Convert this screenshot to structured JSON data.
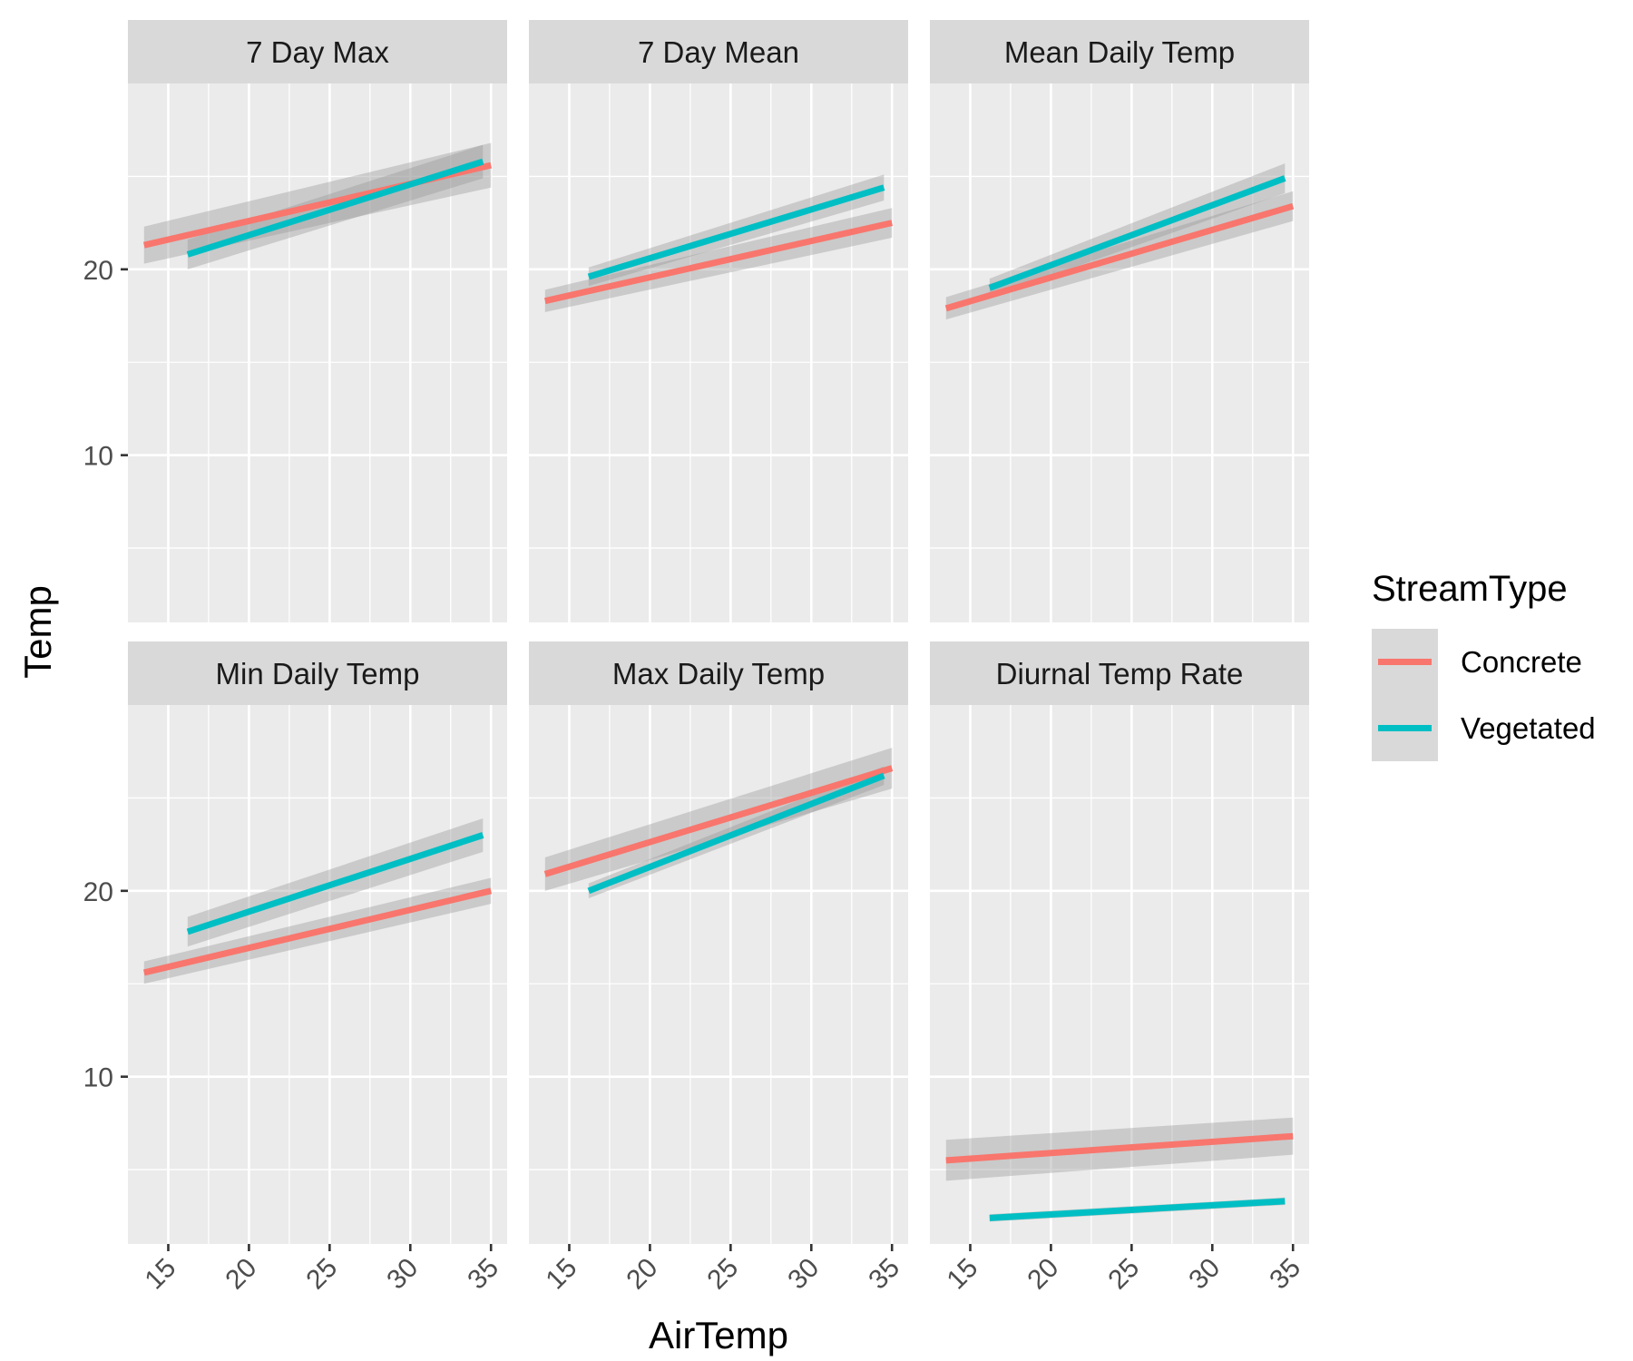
{
  "chart_data": {
    "type": "line",
    "xlabel": "AirTemp",
    "ylabel": "Temp",
    "xlim": [
      12.5,
      36
    ],
    "ylim": [
      1,
      30
    ],
    "x_ticks": [
      15,
      20,
      25,
      30,
      35
    ],
    "y_ticks": [
      10,
      20
    ],
    "grid": true,
    "legend": {
      "title": "StreamType",
      "position": "right",
      "entries": [
        {
          "name": "Concrete",
          "color": "#F8766D"
        },
        {
          "name": "Vegetated",
          "color": "#00BFC4"
        }
      ]
    },
    "colors": {
      "Concrete": "#F8766D",
      "Vegetated": "#00BFC4",
      "panel_background": "#EBEBEB",
      "strip_background": "#D9D9D9",
      "ribbon": "#999999"
    },
    "panels": [
      {
        "title": "7 Day Max",
        "series": [
          {
            "name": "Concrete",
            "x": [
              13.5,
              35
            ],
            "y": [
              21.3,
              25.6
            ],
            "band": [
              1.0,
              1.2
            ]
          },
          {
            "name": "Vegetated",
            "x": [
              16.2,
              34.5
            ],
            "y": [
              20.8,
              25.8
            ],
            "band": [
              0.8,
              0.9
            ]
          }
        ]
      },
      {
        "title": "7 Day Mean",
        "series": [
          {
            "name": "Concrete",
            "x": [
              13.5,
              35
            ],
            "y": [
              18.3,
              22.5
            ],
            "band": [
              0.6,
              0.8
            ]
          },
          {
            "name": "Vegetated",
            "x": [
              16.2,
              34.5
            ],
            "y": [
              19.6,
              24.4
            ],
            "band": [
              0.5,
              0.7
            ]
          }
        ]
      },
      {
        "title": "Mean Daily Temp",
        "series": [
          {
            "name": "Concrete",
            "x": [
              13.5,
              35
            ],
            "y": [
              17.9,
              23.4
            ],
            "band": [
              0.6,
              0.8
            ]
          },
          {
            "name": "Vegetated",
            "x": [
              16.2,
              34.5
            ],
            "y": [
              19.0,
              24.9
            ],
            "band": [
              0.5,
              0.8
            ]
          }
        ]
      },
      {
        "title": "Min Daily Temp",
        "series": [
          {
            "name": "Concrete",
            "x": [
              13.5,
              35
            ],
            "y": [
              15.6,
              20.0
            ],
            "band": [
              0.6,
              0.7
            ]
          },
          {
            "name": "Vegetated",
            "x": [
              16.2,
              34.5
            ],
            "y": [
              17.8,
              23.0
            ],
            "band": [
              0.8,
              0.9
            ]
          }
        ]
      },
      {
        "title": "Max Daily Temp",
        "series": [
          {
            "name": "Concrete",
            "x": [
              13.5,
              35
            ],
            "y": [
              20.9,
              26.6
            ],
            "band": [
              0.9,
              1.1
            ]
          },
          {
            "name": "Vegetated",
            "x": [
              16.2,
              34.5
            ],
            "y": [
              20.0,
              26.2
            ],
            "band": [
              0.4,
              0.5
            ]
          }
        ]
      },
      {
        "title": "Diurnal Temp Rate",
        "series": [
          {
            "name": "Concrete",
            "x": [
              13.5,
              35
            ],
            "y": [
              5.5,
              6.8
            ],
            "band": [
              1.1,
              1.0
            ]
          },
          {
            "name": "Vegetated",
            "x": [
              16.2,
              34.5
            ],
            "y": [
              2.4,
              3.3
            ],
            "band": [
              0.2,
              0.2
            ]
          }
        ]
      }
    ]
  }
}
